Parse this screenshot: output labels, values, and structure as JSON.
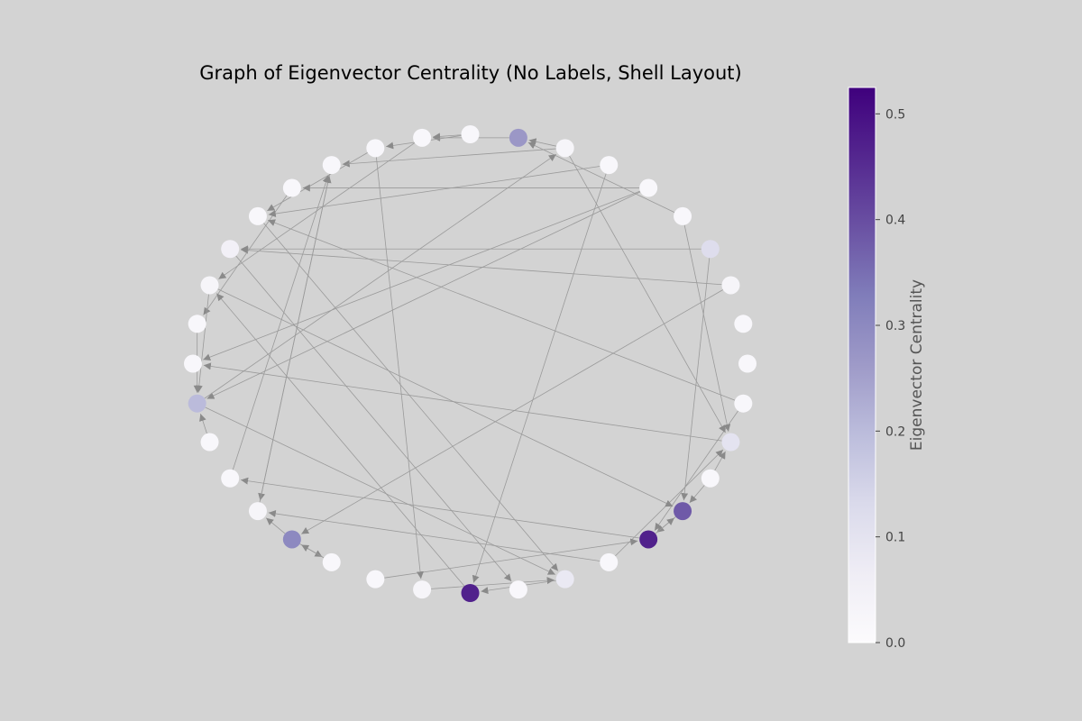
{
  "title": "Graph of Eigenvector Centrality (No Labels, Shell Layout)",
  "colorbar": {
    "label": "Eigenvector Centrality",
    "min": 0.0,
    "max": 0.525,
    "ticks": [
      {
        "value": 0.0,
        "label": "0.0"
      },
      {
        "value": 0.1,
        "label": "0.1"
      },
      {
        "value": 0.2,
        "label": "0.2"
      },
      {
        "value": 0.3,
        "label": "0.3"
      },
      {
        "value": 0.4,
        "label": "0.4"
      },
      {
        "value": 0.5,
        "label": "0.5"
      }
    ],
    "colormap": "Purples",
    "edge_color": "#9a9a9a",
    "background": "#d3d3d3"
  },
  "graph": {
    "directed": true,
    "layout": "shell",
    "node_count": 36,
    "centrality": [
      0.02,
      0.02,
      0.03,
      0.12,
      0.02,
      0.02,
      0.02,
      0.03,
      0.27,
      0.02,
      0.02,
      0.02,
      0.02,
      0.02,
      0.02,
      0.05,
      0.03,
      0.02,
      0.02,
      0.2,
      0.02,
      0.02,
      0.03,
      0.3,
      0.02,
      0.02,
      0.03,
      0.47,
      0.02,
      0.08,
      0.02,
      0.47,
      0.38,
      0.02,
      0.1,
      0.02
    ],
    "edges": [
      [
        35,
        31
      ],
      [
        32,
        31
      ],
      [
        31,
        32
      ],
      [
        33,
        32
      ],
      [
        33,
        34
      ],
      [
        30,
        34
      ],
      [
        23,
        22
      ],
      [
        23,
        24
      ],
      [
        7,
        8
      ],
      [
        7,
        12
      ],
      [
        8,
        10
      ],
      [
        9,
        10
      ],
      [
        9,
        11
      ],
      [
        4,
        8
      ],
      [
        2,
        15
      ],
      [
        3,
        15
      ],
      [
        5,
        18
      ],
      [
        5,
        19
      ],
      [
        6,
        27
      ],
      [
        7,
        34
      ],
      [
        10,
        16
      ],
      [
        11,
        14
      ],
      [
        13,
        17
      ],
      [
        12,
        22
      ],
      [
        15,
        28
      ],
      [
        14,
        29
      ],
      [
        2,
        23
      ],
      [
        3,
        32
      ],
      [
        5,
        13
      ],
      [
        6,
        14
      ],
      [
        16,
        32
      ],
      [
        22,
        12
      ],
      [
        30,
        22
      ],
      [
        31,
        21
      ],
      [
        27,
        16
      ],
      [
        29,
        27
      ],
      [
        34,
        18
      ],
      [
        26,
        29
      ],
      [
        25,
        31
      ],
      [
        19,
        29
      ],
      [
        20,
        19
      ],
      [
        16,
        19
      ],
      [
        17,
        19
      ],
      [
        35,
        14
      ],
      [
        21,
        12
      ],
      [
        11,
        26
      ],
      [
        19,
        7
      ],
      [
        24,
        23
      ],
      [
        4,
        34
      ]
    ]
  }
}
